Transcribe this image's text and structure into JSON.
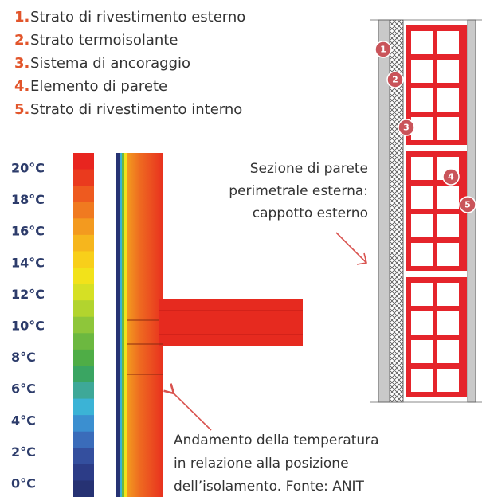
{
  "legend": [
    {
      "number": "1.",
      "label": "Strato di rivestimento esterno"
    },
    {
      "number": "2.",
      "label": "Strato termoisolante"
    },
    {
      "number": "3.",
      "label": "Sistema di ancoraggio"
    },
    {
      "number": "4.",
      "label": "Elemento di parete"
    },
    {
      "number": "5.",
      "label": "Strato di rivestimento interno"
    }
  ],
  "scale": {
    "labels": [
      "20°C",
      "18°C",
      "16°C",
      "14°C",
      "12°C",
      "10°C",
      "8°C",
      "6°C",
      "4°C",
      "2°C",
      "0°C"
    ],
    "colors": [
      "#e8251f",
      "#ea3a1e",
      "#ee5a1f",
      "#f07a20",
      "#f39a1f",
      "#f6b61d",
      "#f8cf1a",
      "#f2e21a",
      "#d6e024",
      "#b2d42e",
      "#8ec63a",
      "#6cb840",
      "#4fad46",
      "#3aa562",
      "#3ea898",
      "#3bb3d6",
      "#3b8fd0",
      "#3a6cba",
      "#344f9e",
      "#2c3c87",
      "#263273"
    ]
  },
  "markers": [
    "1",
    "2",
    "3",
    "4",
    "5"
  ],
  "annotations": {
    "section": [
      "Sezione di parete",
      "perimetrale esterna:",
      "cappotto esterno"
    ],
    "caption": [
      "Andamento della temperatura",
      "in relazione alla posizione",
      "dell’isolamento. Fonte: ANIT"
    ]
  }
}
